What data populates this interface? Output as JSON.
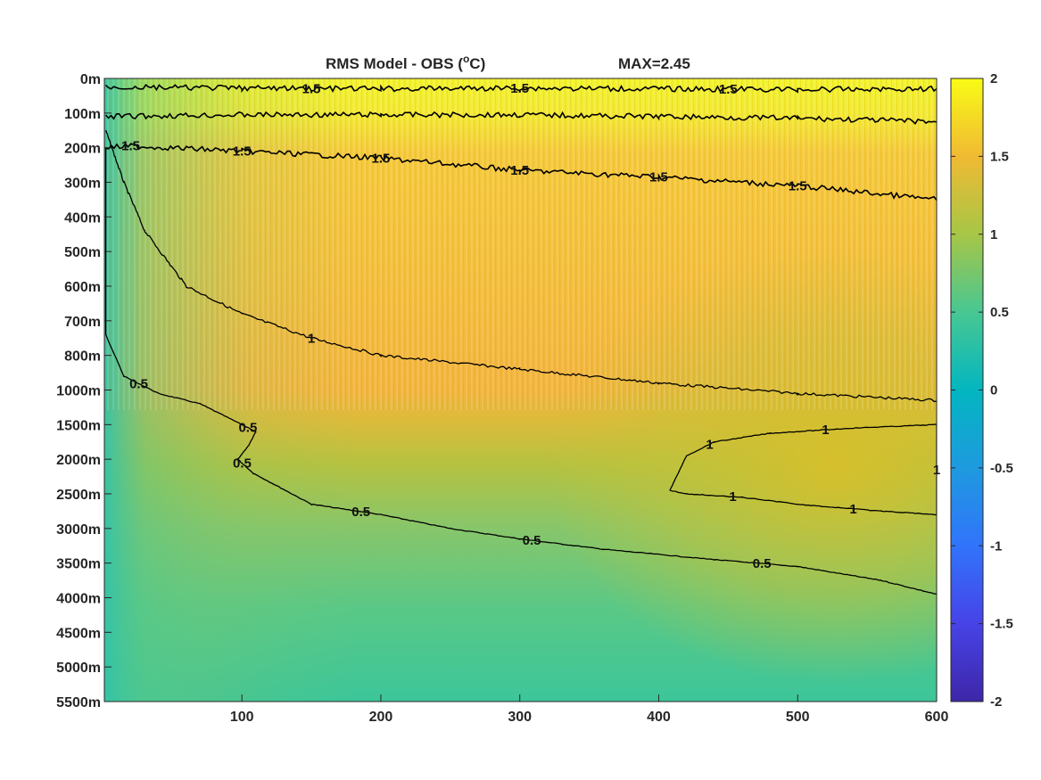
{
  "title": {
    "main": "RMS Model - OBS (",
    "degree": "o",
    "unit": "C)",
    "max_label": "MAX=2.45"
  },
  "chart_data": {
    "type": "heatmap",
    "title": "RMS Model - OBS (°C)",
    "annotation": "MAX=2.45",
    "x_ticks": [
      100,
      200,
      300,
      400,
      500,
      600
    ],
    "xlim": [
      1,
      600
    ],
    "y_ticks": [
      "0m",
      "100m",
      "200m",
      "300m",
      "400m",
      "500m",
      "600m",
      "700m",
      "800m",
      "1000m",
      "1500m",
      "2000m",
      "2500m",
      "3000m",
      "3500m",
      "4000m",
      "4500m",
      "5000m",
      "5500m"
    ],
    "y_axis": "depth, categorical tick levels from 0m (top) to 5500m (bottom)",
    "colorbar": {
      "ticks": [
        2,
        1.5,
        1,
        0.5,
        0,
        -0.5,
        -1,
        -1.5,
        -2
      ],
      "clim": [
        -2,
        2
      ],
      "colormap": "parula"
    },
    "contour_levels": [
      0.5,
      1,
      1.5
    ],
    "contours": [
      {
        "level": 0.5,
        "points": [
          [
            2,
            2.0
          ],
          [
            2,
            7.4
          ],
          [
            15,
            8.6
          ],
          [
            40,
            9.1
          ],
          [
            70,
            9.4
          ],
          [
            110,
            10.2
          ],
          [
            105,
            10.6
          ],
          [
            97,
            11.0
          ],
          [
            108,
            11.4
          ],
          [
            150,
            12.3
          ],
          [
            200,
            12.6
          ],
          [
            250,
            13.0
          ],
          [
            300,
            13.3
          ],
          [
            360,
            13.6
          ],
          [
            440,
            13.9
          ],
          [
            500,
            14.1
          ],
          [
            560,
            14.5
          ],
          [
            600,
            14.9
          ]
        ],
        "labels": [
          "0.5",
          "0.5",
          "0.5",
          "0.5",
          "0.5",
          "0.5"
        ]
      },
      {
        "level": 1,
        "points": [
          [
            2,
            1.5
          ],
          [
            15,
            3.0
          ],
          [
            30,
            4.4
          ],
          [
            60,
            6.0
          ],
          [
            100,
            6.8
          ],
          [
            150,
            7.5
          ],
          [
            200,
            8.0
          ],
          [
            300,
            8.4
          ],
          [
            400,
            8.8
          ],
          [
            500,
            9.1
          ],
          [
            600,
            9.3
          ]
        ],
        "labels": [
          "1"
        ]
      },
      {
        "level": 1,
        "points": [
          [
            408,
            11.9
          ],
          [
            420,
            10.9
          ],
          [
            440,
            10.5
          ],
          [
            480,
            10.25
          ],
          [
            540,
            10.1
          ],
          [
            600,
            10.0
          ],
          [
            600,
            12.6
          ],
          [
            560,
            12.5
          ],
          [
            500,
            12.3
          ],
          [
            460,
            12.1
          ],
          [
            420,
            12.0
          ],
          [
            408,
            11.9
          ]
        ],
        "labels": [
          "1",
          "1",
          "1",
          "1",
          "1"
        ]
      },
      {
        "level": 1.5,
        "points": [
          [
            2,
            2.0
          ],
          [
            20,
            1.95
          ],
          [
            100,
            2.1
          ],
          [
            200,
            2.3
          ],
          [
            300,
            2.65
          ],
          [
            400,
            2.85
          ],
          [
            500,
            3.1
          ],
          [
            600,
            3.5
          ]
        ],
        "labels": [
          "1.5",
          "1.5",
          "1.5",
          "1.5",
          "1.5",
          "1.5"
        ]
      },
      {
        "level": 1.5,
        "points": [
          [
            2,
            1.1
          ],
          [
            100,
            1.05
          ],
          [
            200,
            1.05
          ],
          [
            300,
            1.05
          ],
          [
            400,
            1.1
          ],
          [
            500,
            1.15
          ],
          [
            600,
            1.25
          ]
        ],
        "labels": []
      },
      {
        "level": 1.5,
        "points": [
          [
            2,
            0.25
          ],
          [
            100,
            0.28
          ],
          [
            200,
            0.3
          ],
          [
            300,
            0.28
          ],
          [
            400,
            0.3
          ],
          [
            500,
            0.32
          ],
          [
            600,
            0.3
          ]
        ],
        "labels": [
          "1.5",
          "1.5",
          "1.5"
        ]
      }
    ]
  }
}
